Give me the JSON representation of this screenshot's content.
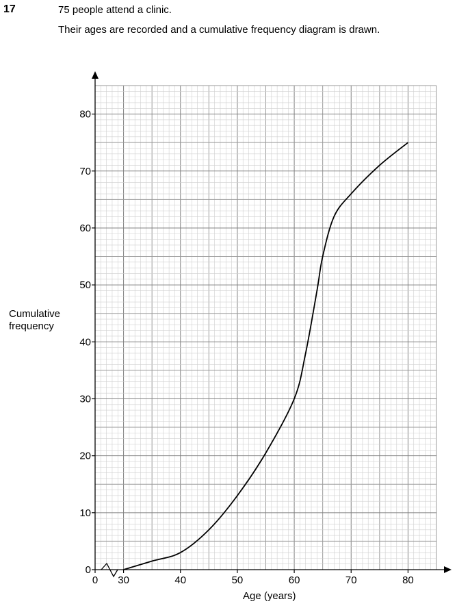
{
  "question": {
    "number": "17",
    "line1": "75 people attend a clinic.",
    "line2": "Their ages are recorded and a cumulative frequency diagram is drawn."
  },
  "chart_data": {
    "type": "line",
    "title": "",
    "xlabel": "Age (years)",
    "ylabel": "Cumulative\nfrequency",
    "x_origin_label": "0",
    "x_axis_break": true,
    "xlim": [
      25,
      85
    ],
    "ylim": [
      0,
      85
    ],
    "x_ticks": [
      30,
      40,
      50,
      60,
      70,
      80
    ],
    "y_ticks": [
      0,
      10,
      20,
      30,
      40,
      50,
      60,
      70,
      80
    ],
    "grid": true,
    "series": [
      {
        "x": [
          30,
          35,
          40,
          45,
          50,
          55,
          60,
          62,
          64,
          65,
          67,
          70,
          75,
          80
        ],
        "y": [
          0,
          1.5,
          3,
          7,
          13,
          20.5,
          30,
          38,
          49,
          55,
          62,
          66,
          71,
          75
        ]
      }
    ]
  }
}
